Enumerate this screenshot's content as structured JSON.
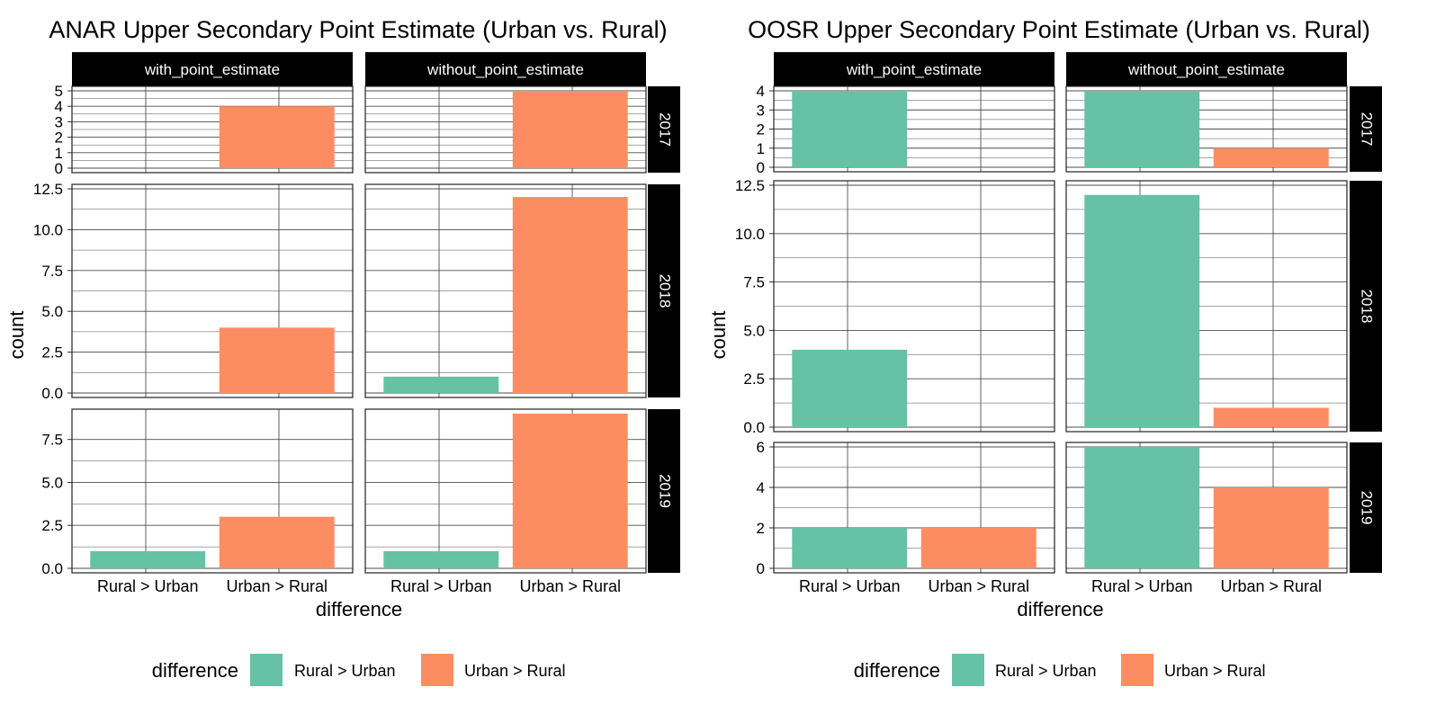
{
  "colors": {
    "rural_gt_urban": "#66c2a5",
    "urban_gt_rural": "#fc8d62",
    "strip_bg": "#000000",
    "strip_text": "#ffffff",
    "grid": "#4d4d4d",
    "panel_border": "#222222"
  },
  "chart_data": [
    {
      "type": "bar",
      "title": "ANAR Upper Secondary Point Estimate (Urban vs. Rural)",
      "xlabel": "difference",
      "ylabel": "count",
      "categories": [
        "Rural >  Urban",
        "Urban > Rural"
      ],
      "facet_columns": [
        "with_point_estimate",
        "without_point_estimate"
      ],
      "facet_rows": [
        {
          "label": "2017",
          "ylim": [
            0,
            5
          ],
          "ticks": [
            "0",
            "1",
            "2",
            "3",
            "4",
            "5"
          ],
          "tick_values": [
            0,
            1,
            2,
            3,
            4,
            5
          ]
        },
        {
          "label": "2018",
          "ylim": [
            0,
            12.5
          ],
          "ticks": [
            "0.0",
            "2.5",
            "5.0",
            "7.5",
            "10.0",
            "12.5"
          ],
          "tick_values": [
            0,
            2.5,
            5,
            7.5,
            10,
            12.5
          ]
        },
        {
          "label": "2019",
          "ylim": [
            0,
            9
          ],
          "ticks": [
            "0.0",
            "2.5",
            "5.0",
            "7.5"
          ],
          "tick_values": [
            0,
            2.5,
            5,
            7.5
          ]
        }
      ],
      "values": {
        "2017": {
          "with_point_estimate": [
            0,
            4
          ],
          "without_point_estimate": [
            0,
            5
          ]
        },
        "2018": {
          "with_point_estimate": [
            0,
            4
          ],
          "without_point_estimate": [
            1,
            12
          ]
        },
        "2019": {
          "with_point_estimate": [
            1,
            3
          ],
          "without_point_estimate": [
            1,
            9
          ]
        }
      },
      "legend": {
        "title": "difference",
        "position": "bottom",
        "entries": [
          "Rural >  Urban",
          "Urban > Rural"
        ]
      }
    },
    {
      "type": "bar",
      "title": "OOSR Upper Secondary Point Estimate (Urban vs. Rural)",
      "xlabel": "difference",
      "ylabel": "count",
      "categories": [
        "Rural >  Urban",
        "Urban > Rural"
      ],
      "facet_columns": [
        "with_point_estimate",
        "without_point_estimate"
      ],
      "facet_rows": [
        {
          "label": "2017",
          "ylim": [
            0,
            4
          ],
          "ticks": [
            "0",
            "1",
            "2",
            "3",
            "4"
          ],
          "tick_values": [
            0,
            1,
            2,
            3,
            4
          ]
        },
        {
          "label": "2018",
          "ylim": [
            0,
            12.5
          ],
          "ticks": [
            "0.0",
            "2.5",
            "5.0",
            "7.5",
            "10.0",
            "12.5"
          ],
          "tick_values": [
            0,
            2.5,
            5,
            7.5,
            10,
            12.5
          ]
        },
        {
          "label": "2019",
          "ylim": [
            0,
            6
          ],
          "ticks": [
            "0",
            "2",
            "4",
            "6"
          ],
          "tick_values": [
            0,
            2,
            4,
            6
          ]
        }
      ],
      "values": {
        "2017": {
          "with_point_estimate": [
            4,
            0
          ],
          "without_point_estimate": [
            4,
            1
          ]
        },
        "2018": {
          "with_point_estimate": [
            4,
            0
          ],
          "without_point_estimate": [
            12,
            1
          ]
        },
        "2019": {
          "with_point_estimate": [
            2,
            2
          ],
          "without_point_estimate": [
            6,
            4
          ]
        }
      },
      "legend": {
        "title": "difference",
        "position": "bottom",
        "entries": [
          "Rural >  Urban",
          "Urban > Rural"
        ]
      }
    }
  ]
}
